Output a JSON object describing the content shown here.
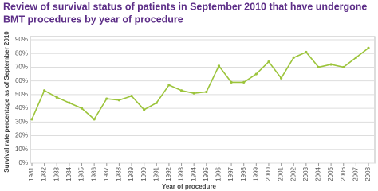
{
  "chart_data": {
    "type": "line",
    "title": [
      "Review of survival status of patients in September 2010 that have undergone",
      "BMT procedures by year of procedure"
    ],
    "x_label": "Year of procedure",
    "y_label": "Survival rate percentage as of September 2010",
    "categories": [
      "1981",
      "1982",
      "1983",
      "1984",
      "1985",
      "1986",
      "1987",
      "1988",
      "1989",
      "1990",
      "1991",
      "1992",
      "1993",
      "1994",
      "1995",
      "1996",
      "1997",
      "1998",
      "1999",
      "2000",
      "2001",
      "2002",
      "2003",
      "2004",
      "2005",
      "2006",
      "2007",
      "2008"
    ],
    "series": [
      {
        "color": "#9cc43b",
        "values": [
          32,
          53,
          48,
          44,
          40,
          32,
          47,
          46,
          49,
          39,
          44,
          57,
          53,
          51,
          52,
          71,
          59,
          59,
          65,
          74,
          62,
          77,
          81,
          70,
          72,
          70,
          77,
          84
        ]
      }
    ],
    "ylim": [
      0,
      90
    ],
    "yticks": [
      {
        "value": 0,
        "label": "0%"
      },
      {
        "value": 10,
        "label": "10%"
      },
      {
        "value": 20,
        "label": "20%"
      },
      {
        "value": 30,
        "label": "30%"
      },
      {
        "value": 40,
        "label": "40%"
      },
      {
        "value": 50,
        "label": "50%"
      },
      {
        "value": 60,
        "label": "60%"
      },
      {
        "value": 70,
        "label": "70%"
      },
      {
        "value": 80,
        "label": "80%"
      },
      {
        "value": 90,
        "label": "90%"
      }
    ],
    "grid": true
  }
}
